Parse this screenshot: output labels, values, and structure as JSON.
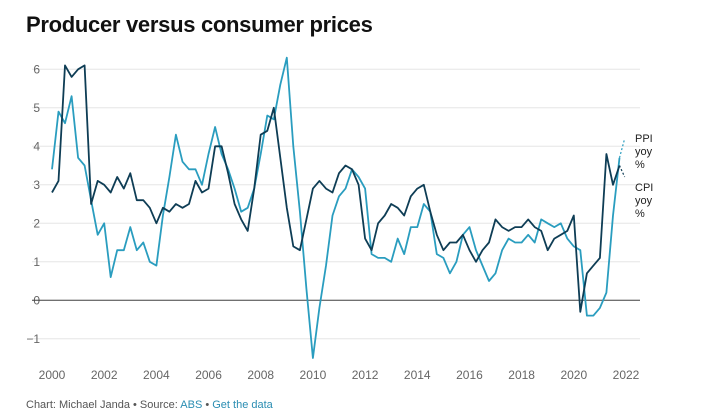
{
  "title": "Producer versus consumer prices",
  "footer": {
    "prefix": "Chart: Michael Janda • Source: ",
    "source": "ABS",
    "sep": " • ",
    "link": "Get the data"
  },
  "legend": {
    "ppi": [
      "PPI",
      "yoy",
      "%"
    ],
    "cpi": [
      "CPI",
      "yoy",
      "%"
    ]
  },
  "colors": {
    "ppi": "#2a9dbf",
    "cpi": "#0e3d55",
    "zero": "#444444",
    "grid": "#e6e6e6"
  },
  "chart_data": {
    "type": "line",
    "title": "Producer versus consumer prices",
    "xlabel": "",
    "ylabel": "",
    "xlim": [
      2000,
      2022
    ],
    "ylim": [
      -1.5,
      6.5
    ],
    "xticks": [
      2000,
      2002,
      2004,
      2006,
      2008,
      2010,
      2012,
      2014,
      2016,
      2018,
      2020,
      2022
    ],
    "yticks": [
      -1,
      0,
      1,
      2,
      3,
      4,
      5,
      6
    ],
    "x": [
      2000.0,
      2000.25,
      2000.5,
      2000.75,
      2001.0,
      2001.25,
      2001.5,
      2001.75,
      2002.0,
      2002.25,
      2002.5,
      2002.75,
      2003.0,
      2003.25,
      2003.5,
      2003.75,
      2004.0,
      2004.25,
      2004.5,
      2004.75,
      2005.0,
      2005.25,
      2005.5,
      2005.75,
      2006.0,
      2006.25,
      2006.5,
      2006.75,
      2007.0,
      2007.25,
      2007.5,
      2007.75,
      2008.0,
      2008.25,
      2008.5,
      2008.75,
      2009.0,
      2009.25,
      2009.5,
      2009.75,
      2010.0,
      2010.25,
      2010.5,
      2010.75,
      2011.0,
      2011.25,
      2011.5,
      2011.75,
      2012.0,
      2012.25,
      2012.5,
      2012.75,
      2013.0,
      2013.25,
      2013.5,
      2013.75,
      2014.0,
      2014.25,
      2014.5,
      2014.75,
      2015.0,
      2015.25,
      2015.5,
      2015.75,
      2016.0,
      2016.25,
      2016.5,
      2016.75,
      2017.0,
      2017.25,
      2017.5,
      2017.75,
      2018.0,
      2018.25,
      2018.5,
      2018.75,
      2019.0,
      2019.25,
      2019.5,
      2019.75,
      2020.0,
      2020.25,
      2020.5,
      2020.75,
      2021.0,
      2021.25,
      2021.5,
      2021.75
    ],
    "series": [
      {
        "name": "PPI yoy %",
        "values": [
          3.4,
          4.9,
          4.6,
          5.3,
          3.7,
          3.5,
          2.6,
          1.7,
          2.0,
          0.6,
          1.3,
          1.3,
          1.9,
          1.3,
          1.5,
          1.0,
          0.9,
          2.2,
          3.2,
          4.3,
          3.6,
          3.4,
          3.4,
          3.0,
          3.8,
          4.5,
          3.8,
          3.4,
          2.9,
          2.3,
          2.4,
          2.9,
          3.8,
          4.8,
          4.7,
          5.6,
          6.3,
          4.0,
          2.3,
          0.3,
          -1.5,
          -0.2,
          0.9,
          2.2,
          2.7,
          2.9,
          3.4,
          3.2,
          2.9,
          1.2,
          1.1,
          1.1,
          1.0,
          1.6,
          1.2,
          1.9,
          1.9,
          2.5,
          2.3,
          1.2,
          1.1,
          0.7,
          1.0,
          1.7,
          1.9,
          1.3,
          0.9,
          0.5,
          0.7,
          1.3,
          1.6,
          1.5,
          1.5,
          1.7,
          1.5,
          2.1,
          2.0,
          1.9,
          2.0,
          1.6,
          1.4,
          1.3,
          -0.4,
          -0.4,
          -0.2,
          0.2,
          2.2,
          3.7
        ],
        "end": [
          2021.95,
          4.2
        ]
      },
      {
        "name": "CPI yoy %",
        "values": [
          2.8,
          3.1,
          6.1,
          5.8,
          6.0,
          6.1,
          2.5,
          3.1,
          3.0,
          2.8,
          3.2,
          2.9,
          3.3,
          2.6,
          2.6,
          2.4,
          2.0,
          2.4,
          2.3,
          2.5,
          2.4,
          2.5,
          3.1,
          2.8,
          2.9,
          4.0,
          4.0,
          3.3,
          2.5,
          2.1,
          1.8,
          2.9,
          4.3,
          4.4,
          5.0,
          3.7,
          2.4,
          1.4,
          1.3,
          2.1,
          2.9,
          3.1,
          2.9,
          2.8,
          3.3,
          3.5,
          3.4,
          3.0,
          1.6,
          1.3,
          2.0,
          2.2,
          2.5,
          2.4,
          2.2,
          2.7,
          2.9,
          3.0,
          2.3,
          1.7,
          1.3,
          1.5,
          1.5,
          1.7,
          1.3,
          1.0,
          1.3,
          1.5,
          2.1,
          1.9,
          1.8,
          1.9,
          1.9,
          2.1,
          1.9,
          1.8,
          1.3,
          1.6,
          1.7,
          1.8,
          2.2,
          -0.3,
          0.7,
          0.9,
          1.1,
          3.8,
          3.0,
          3.5
        ],
        "end": [
          2021.95,
          3.2
        ]
      }
    ]
  }
}
